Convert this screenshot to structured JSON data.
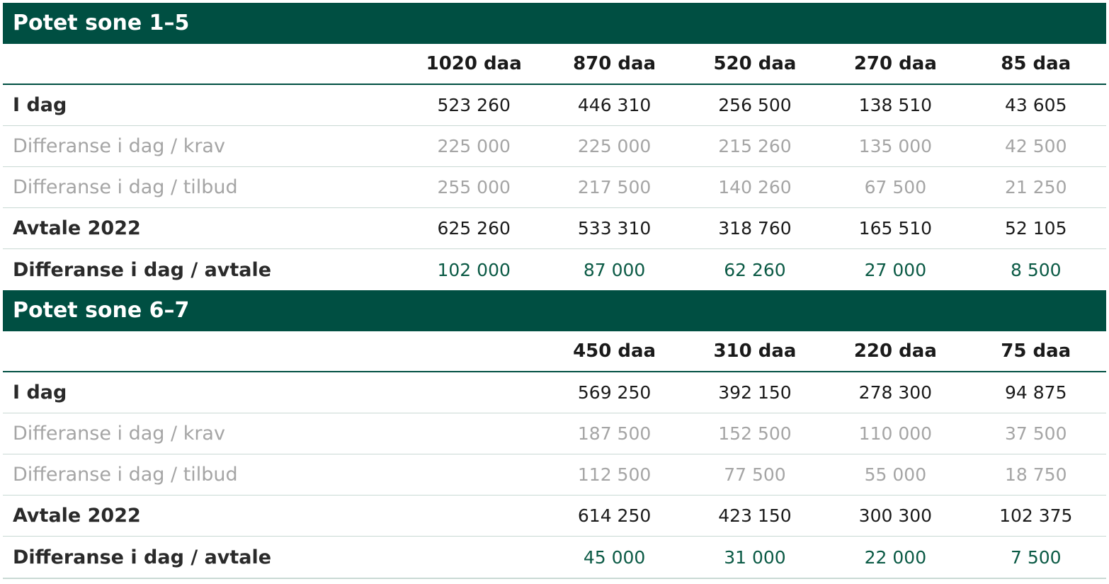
{
  "sections": [
    {
      "title": "Potet sone 1–5",
      "columns": [
        "1020 daa",
        "870 daa",
        "520 daa",
        "270 daa",
        "85 daa"
      ],
      "rows": [
        {
          "label": "I dag",
          "values": [
            "523 260",
            "446 310",
            "256 500",
            "138 510",
            "43 605"
          ]
        },
        {
          "label": "Differanse i dag / krav",
          "values": [
            "225 000",
            "225 000",
            "215 260",
            "135 000",
            "42 500"
          ]
        },
        {
          "label": "Differanse i dag / tilbud",
          "values": [
            "255 000",
            "217 500",
            "140 260",
            "67 500",
            "21 250"
          ]
        },
        {
          "label": "Avtale 2022",
          "values": [
            "625 260",
            "533 310",
            "318 760",
            "165 510",
            "52 105"
          ]
        },
        {
          "label": "Differanse i dag / avtale",
          "values": [
            "102 000",
            "87 000",
            "62 260",
            "27 000",
            "8 500"
          ]
        }
      ]
    },
    {
      "title": "Potet sone 6–7",
      "columns": [
        "",
        "450 daa",
        "310 daa",
        "220 daa",
        "75 daa"
      ],
      "rows": [
        {
          "label": "I dag",
          "values": [
            "",
            "569 250",
            "392 150",
            "278 300",
            "94 875"
          ]
        },
        {
          "label": "Differanse i dag / krav",
          "values": [
            "",
            "187 500",
            "152 500",
            "110 000",
            "37 500"
          ]
        },
        {
          "label": "Differanse i dag / tilbud",
          "values": [
            "",
            "112 500",
            "77 500",
            "55 000",
            "18 750"
          ]
        },
        {
          "label": "Avtale 2022",
          "values": [
            "",
            "614 250",
            "423 150",
            "300 300",
            "102 375"
          ]
        },
        {
          "label": "Differanse i dag / avtale",
          "values": [
            "",
            "45 000",
            "31 000",
            "22 000",
            "7 500"
          ]
        }
      ]
    }
  ],
  "colors": {
    "header_bg": "#004f42",
    "header_text": "#ffffff",
    "muted_text": "#a5a5a5",
    "diff_text": "#0b5a45"
  }
}
